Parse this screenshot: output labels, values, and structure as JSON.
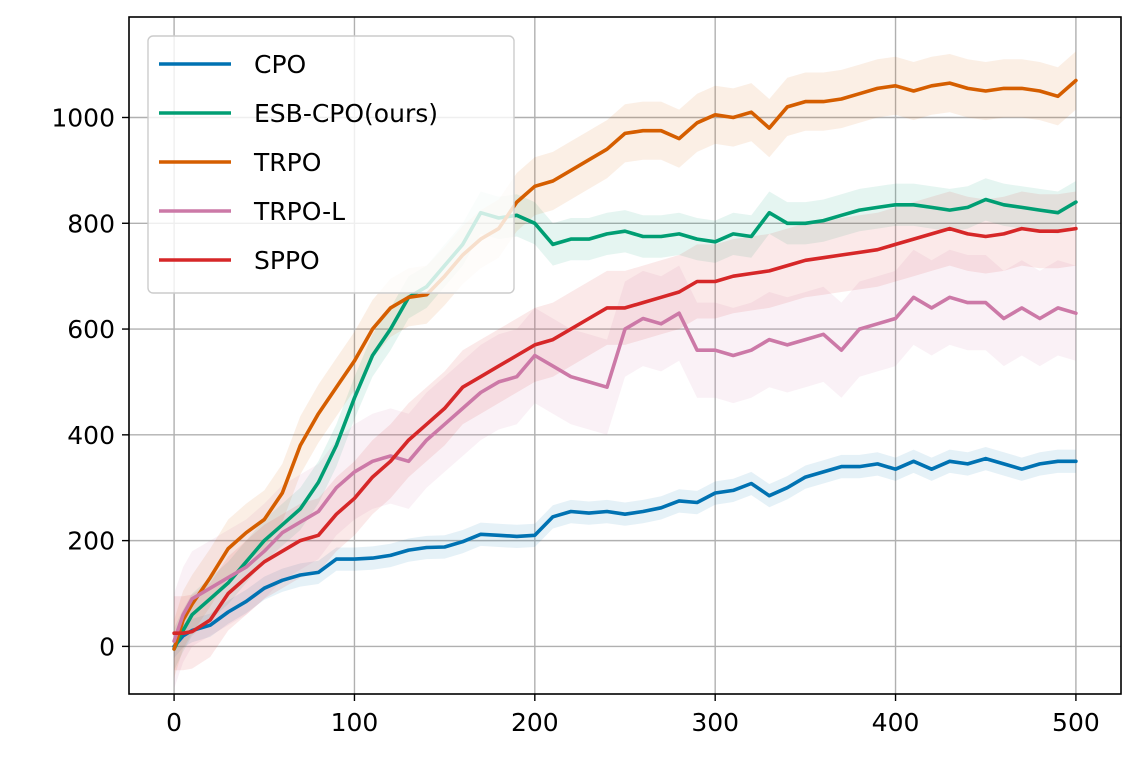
{
  "chart_data": {
    "type": "line",
    "title": "",
    "xlabel": "",
    "ylabel": "",
    "xlim": [
      -25,
      525
    ],
    "ylim": [
      -90,
      1190
    ],
    "xticks": [
      0,
      100,
      200,
      300,
      400,
      500
    ],
    "yticks": [
      0,
      200,
      400,
      600,
      800,
      1000
    ],
    "xtick_labels": [
      "0",
      "100",
      "200",
      "300",
      "400",
      "500"
    ],
    "ytick_labels": [
      "0",
      "200",
      "400",
      "600",
      "800",
      "1000"
    ],
    "grid": true,
    "legend_position": "top-left",
    "series": [
      {
        "name": "CPO",
        "color": "#0072B2",
        "x": [
          0,
          5,
          10,
          20,
          30,
          40,
          50,
          60,
          70,
          80,
          90,
          100,
          110,
          120,
          130,
          140,
          150,
          160,
          170,
          180,
          190,
          200,
          210,
          220,
          230,
          240,
          250,
          260,
          270,
          280,
          290,
          300,
          310,
          320,
          330,
          340,
          350,
          360,
          370,
          380,
          390,
          400,
          410,
          420,
          430,
          440,
          450,
          460,
          470,
          480,
          490,
          500
        ],
        "y": [
          0,
          20,
          30,
          40,
          65,
          85,
          110,
          125,
          135,
          140,
          165,
          165,
          167,
          172,
          182,
          187,
          188,
          198,
          212,
          210,
          208,
          210,
          245,
          255,
          252,
          255,
          250,
          255,
          262,
          275,
          272,
          290,
          295,
          308,
          285,
          300,
          320,
          330,
          340,
          340,
          345,
          335,
          350,
          335,
          350,
          345,
          355,
          345,
          335,
          345,
          350,
          350
        ],
        "band": 22
      },
      {
        "name": "ESB-CPO(ours)",
        "color": "#009E73",
        "x": [
          0,
          5,
          10,
          20,
          30,
          40,
          50,
          60,
          70,
          80,
          90,
          100,
          110,
          120,
          130,
          140,
          150,
          160,
          170,
          180,
          190,
          200,
          210,
          220,
          230,
          240,
          250,
          260,
          270,
          280,
          290,
          300,
          310,
          320,
          330,
          340,
          350,
          360,
          370,
          380,
          390,
          400,
          410,
          420,
          430,
          440,
          450,
          460,
          470,
          480,
          490,
          500
        ],
        "y": [
          -5,
          30,
          60,
          90,
          120,
          160,
          200,
          230,
          260,
          310,
          380,
          470,
          550,
          600,
          660,
          680,
          720,
          760,
          820,
          810,
          815,
          800,
          760,
          770,
          770,
          780,
          785,
          775,
          775,
          780,
          770,
          765,
          780,
          775,
          820,
          800,
          800,
          805,
          815,
          825,
          830,
          835,
          835,
          830,
          825,
          830,
          845,
          835,
          830,
          825,
          820,
          840
        ],
        "band": 40
      },
      {
        "name": "TRPO",
        "color": "#D55E00",
        "x": [
          0,
          5,
          10,
          20,
          30,
          40,
          50,
          60,
          70,
          80,
          90,
          100,
          110,
          120,
          130,
          140,
          150,
          160,
          170,
          180,
          190,
          200,
          210,
          220,
          230,
          240,
          250,
          260,
          270,
          280,
          290,
          300,
          310,
          320,
          330,
          340,
          350,
          360,
          370,
          380,
          390,
          400,
          410,
          420,
          430,
          440,
          450,
          460,
          470,
          480,
          490,
          500
        ],
        "y": [
          -5,
          50,
          80,
          130,
          185,
          215,
          240,
          290,
          380,
          440,
          490,
          540,
          600,
          640,
          660,
          665,
          700,
          740,
          770,
          790,
          840,
          870,
          880,
          900,
          920,
          940,
          970,
          975,
          975,
          960,
          990,
          1005,
          1000,
          1010,
          980,
          1020,
          1030,
          1030,
          1035,
          1045,
          1055,
          1060,
          1050,
          1060,
          1065,
          1055,
          1050,
          1055,
          1055,
          1050,
          1040,
          1070
        ],
        "band": 55
      },
      {
        "name": "TRPO-L",
        "color": "#CC79A7",
        "x": [
          0,
          5,
          10,
          20,
          30,
          40,
          50,
          60,
          70,
          80,
          90,
          100,
          110,
          120,
          130,
          140,
          150,
          160,
          170,
          180,
          190,
          200,
          210,
          220,
          230,
          240,
          250,
          260,
          270,
          280,
          290,
          300,
          310,
          320,
          330,
          340,
          350,
          360,
          370,
          380,
          390,
          400,
          410,
          420,
          430,
          440,
          450,
          460,
          470,
          480,
          490,
          500
        ],
        "y": [
          10,
          60,
          90,
          110,
          130,
          150,
          180,
          215,
          235,
          255,
          300,
          330,
          350,
          360,
          350,
          390,
          420,
          450,
          480,
          500,
          510,
          550,
          530,
          510,
          500,
          490,
          600,
          620,
          610,
          630,
          560,
          560,
          550,
          560,
          580,
          570,
          580,
          590,
          560,
          600,
          610,
          620,
          660,
          640,
          660,
          650,
          650,
          620,
          640,
          620,
          640,
          630
        ],
        "band": 90
      },
      {
        "name": "SPPO",
        "color": "#D62728",
        "x": [
          0,
          5,
          10,
          20,
          30,
          40,
          50,
          60,
          70,
          80,
          90,
          100,
          110,
          120,
          130,
          140,
          150,
          160,
          170,
          180,
          190,
          200,
          210,
          220,
          230,
          240,
          250,
          260,
          270,
          280,
          290,
          300,
          310,
          320,
          330,
          340,
          350,
          360,
          370,
          380,
          390,
          400,
          410,
          420,
          430,
          440,
          450,
          460,
          470,
          480,
          490,
          500
        ],
        "y": [
          25,
          25,
          28,
          50,
          100,
          130,
          160,
          180,
          200,
          210,
          250,
          280,
          320,
          350,
          390,
          420,
          450,
          490,
          510,
          530,
          550,
          570,
          580,
          600,
          620,
          640,
          640,
          650,
          660,
          670,
          690,
          690,
          700,
          705,
          710,
          720,
          730,
          735,
          740,
          745,
          750,
          760,
          770,
          780,
          790,
          780,
          775,
          780,
          790,
          785,
          785,
          790
        ],
        "band": 70
      }
    ]
  }
}
